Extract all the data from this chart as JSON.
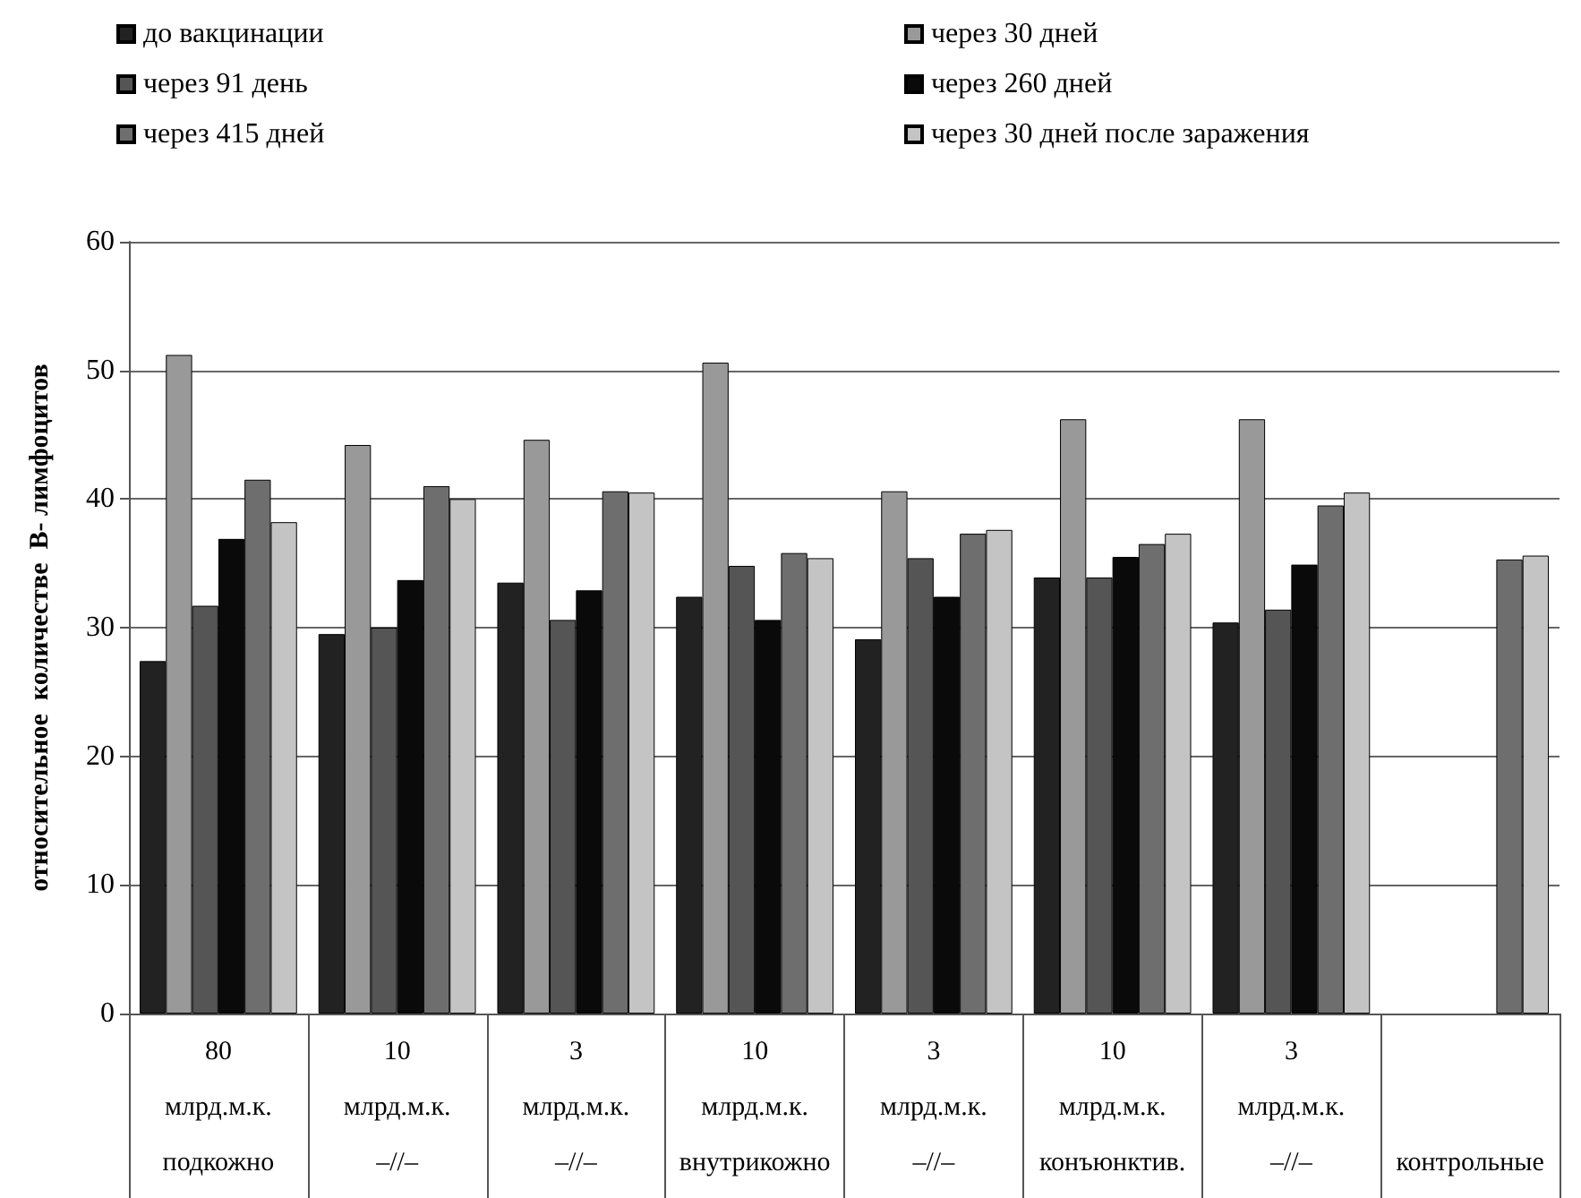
{
  "chart_data": {
    "type": "bar",
    "ylabel": "относительное  количестве  В- лимфоцитов",
    "categories": [
      "80\nмлрд.м.к.\nподкожно",
      "10\nмлрд.м.к.\n–//–",
      "3\nмлрд.м.к.\n–//–",
      "10\nмлрд.м.к.\nвнутрикожно",
      "3\nмлрд.м.к.\n–//–",
      "10\nмлрд.м.к.\nконъюнктив.",
      "3\nмлрд.м.к.\n–//–",
      "\n\nконтрольные"
    ],
    "series": [
      {
        "name": "до вакцинации",
        "color": "#222222",
        "values": [
          27.4,
          29.5,
          33.5,
          32.4,
          29.1,
          33.9,
          30.4,
          null
        ]
      },
      {
        "name": "через 30 дней",
        "color": "#999999",
        "values": [
          51.2,
          44.2,
          44.6,
          50.6,
          40.6,
          46.2,
          46.2,
          null
        ]
      },
      {
        "name": "через 91 день",
        "color": "#555555",
        "values": [
          31.7,
          30.0,
          30.6,
          34.8,
          35.4,
          33.9,
          31.4,
          null
        ]
      },
      {
        "name": "через 260 дней",
        "color": "#0a0a0a",
        "values": [
          36.9,
          33.7,
          32.9,
          30.6,
          32.4,
          35.5,
          34.9,
          null
        ]
      },
      {
        "name": "через 415 дней",
        "color": "#6e6e6e",
        "values": [
          41.5,
          41.0,
          40.6,
          35.8,
          37.3,
          36.5,
          39.5,
          35.3
        ]
      },
      {
        "name": "через 30 дней после заражения",
        "color": "#c4c4c4",
        "values": [
          38.2,
          40.0,
          40.5,
          35.4,
          37.6,
          37.3,
          40.5,
          35.6
        ]
      }
    ],
    "ylim": [
      0,
      60
    ],
    "yticks": [
      0,
      10,
      20,
      30,
      40,
      50,
      60
    ],
    "grid": "y",
    "legend": "top"
  }
}
